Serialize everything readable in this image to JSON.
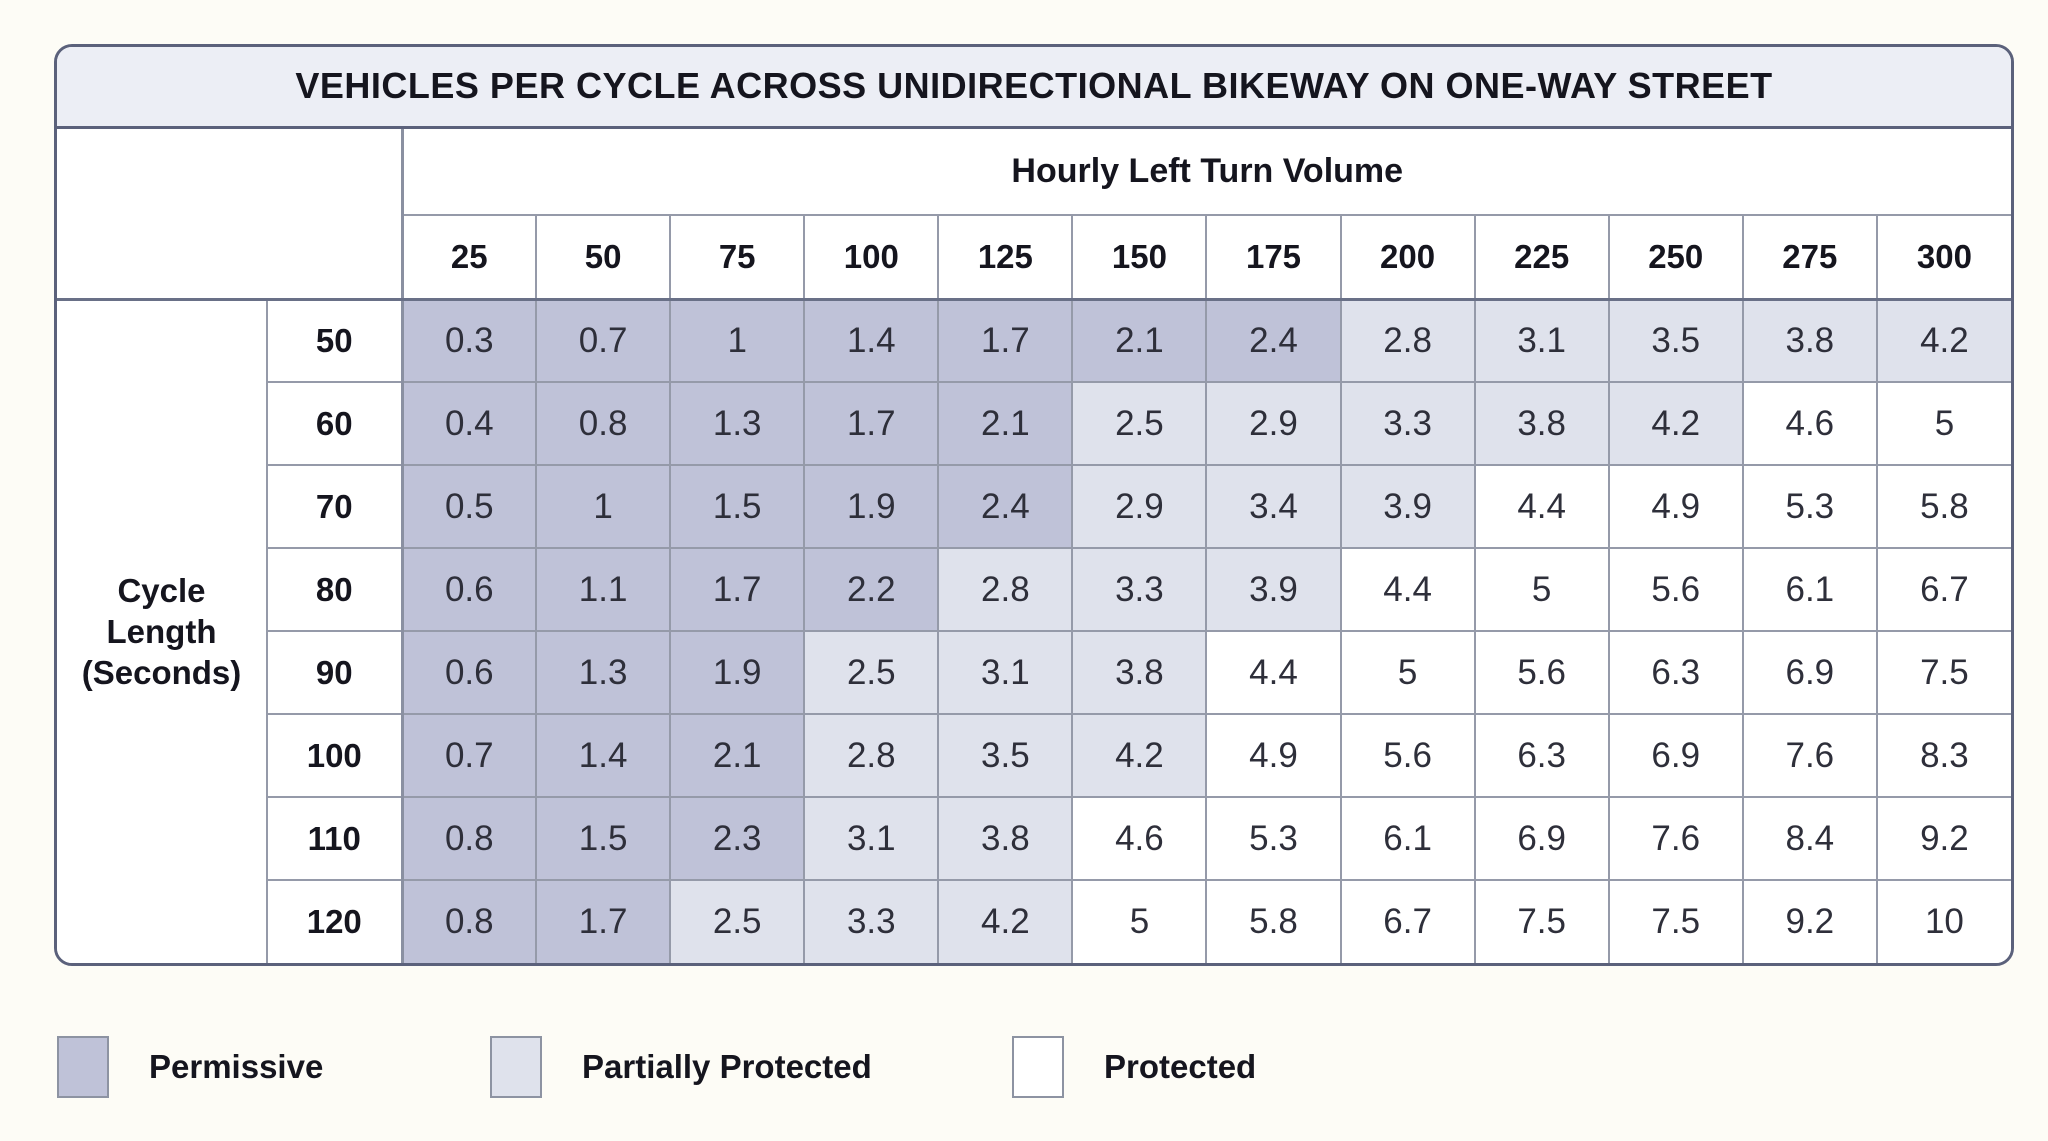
{
  "chart_data": {
    "type": "table",
    "title": "VEHICLES PER CYCLE ACROSS UNIDIRECTIONAL BIKEWAY ON ONE-WAY STREET",
    "column_group_label": "Hourly Left Turn Volume",
    "row_group_label": "Cycle Length (Seconds)",
    "columns": [
      "25",
      "50",
      "75",
      "100",
      "125",
      "150",
      "175",
      "200",
      "225",
      "250",
      "275",
      "300"
    ],
    "rows": [
      {
        "cycle_length": "50",
        "values": [
          "0.3",
          "0.7",
          "1",
          "1.4",
          "1.7",
          "2.1",
          "2.4",
          "2.8",
          "3.1",
          "3.5",
          "3.8",
          "4.2"
        ],
        "categories": [
          "p",
          "p",
          "p",
          "p",
          "p",
          "p",
          "p",
          "pp",
          "pp",
          "pp",
          "pp",
          "pp"
        ]
      },
      {
        "cycle_length": "60",
        "values": [
          "0.4",
          "0.8",
          "1.3",
          "1.7",
          "2.1",
          "2.5",
          "2.9",
          "3.3",
          "3.8",
          "4.2",
          "4.6",
          "5"
        ],
        "categories": [
          "p",
          "p",
          "p",
          "p",
          "p",
          "pp",
          "pp",
          "pp",
          "pp",
          "pp",
          "pr",
          "pr"
        ]
      },
      {
        "cycle_length": "70",
        "values": [
          "0.5",
          "1",
          "1.5",
          "1.9",
          "2.4",
          "2.9",
          "3.4",
          "3.9",
          "4.4",
          "4.9",
          "5.3",
          "5.8"
        ],
        "categories": [
          "p",
          "p",
          "p",
          "p",
          "p",
          "pp",
          "pp",
          "pp",
          "pr",
          "pr",
          "pr",
          "pr"
        ]
      },
      {
        "cycle_length": "80",
        "values": [
          "0.6",
          "1.1",
          "1.7",
          "2.2",
          "2.8",
          "3.3",
          "3.9",
          "4.4",
          "5",
          "5.6",
          "6.1",
          "6.7"
        ],
        "categories": [
          "p",
          "p",
          "p",
          "p",
          "pp",
          "pp",
          "pp",
          "pr",
          "pr",
          "pr",
          "pr",
          "pr"
        ]
      },
      {
        "cycle_length": "90",
        "values": [
          "0.6",
          "1.3",
          "1.9",
          "2.5",
          "3.1",
          "3.8",
          "4.4",
          "5",
          "5.6",
          "6.3",
          "6.9",
          "7.5"
        ],
        "categories": [
          "p",
          "p",
          "p",
          "pp",
          "pp",
          "pp",
          "pr",
          "pr",
          "pr",
          "pr",
          "pr",
          "pr"
        ]
      },
      {
        "cycle_length": "100",
        "values": [
          "0.7",
          "1.4",
          "2.1",
          "2.8",
          "3.5",
          "4.2",
          "4.9",
          "5.6",
          "6.3",
          "6.9",
          "7.6",
          "8.3"
        ],
        "categories": [
          "p",
          "p",
          "p",
          "pp",
          "pp",
          "pp",
          "pr",
          "pr",
          "pr",
          "pr",
          "pr",
          "pr"
        ]
      },
      {
        "cycle_length": "110",
        "values": [
          "0.8",
          "1.5",
          "2.3",
          "3.1",
          "3.8",
          "4.6",
          "5.3",
          "6.1",
          "6.9",
          "7.6",
          "8.4",
          "9.2"
        ],
        "categories": [
          "p",
          "p",
          "p",
          "pp",
          "pp",
          "pr",
          "pr",
          "pr",
          "pr",
          "pr",
          "pr",
          "pr"
        ]
      },
      {
        "cycle_length": "120",
        "values": [
          "0.8",
          "1.7",
          "2.5",
          "3.3",
          "4.2",
          "5",
          "5.8",
          "6.7",
          "7.5",
          "7.5",
          "9.2",
          "10"
        ],
        "categories": [
          "p",
          "p",
          "pp",
          "pp",
          "pp",
          "pr",
          "pr",
          "pr",
          "pr",
          "pr",
          "pr",
          "pr"
        ]
      }
    ],
    "category_colors": {
      "p": "#bfc2d8",
      "pp": "#dfe2ec",
      "pr": "#ffffff"
    },
    "category_names": {
      "p": "Permissive",
      "pp": "Partially Protected",
      "pr": "Protected"
    }
  },
  "legend": {
    "items": [
      {
        "label": "Permissive",
        "key": "p",
        "color": "#bfc2d8"
      },
      {
        "label": "Partially Protected",
        "key": "pp",
        "color": "#dfe2ec"
      },
      {
        "label": "Protected",
        "key": "pr",
        "color": "#ffffff"
      }
    ]
  }
}
